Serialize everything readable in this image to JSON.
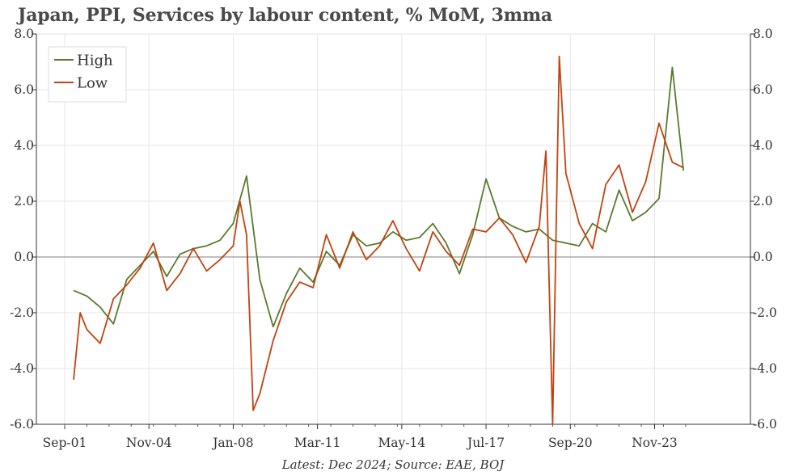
{
  "title": "Japan, PPI, Services by labour content, % MoM, 3mma",
  "footnote": "Latest: Dec 2024; Source: EAE, BOJ",
  "chart_data": {
    "type": "line",
    "x_label": "",
    "y_label": "",
    "ylim": [
      -6.0,
      8.0
    ],
    "y_ticks": [
      "8.0",
      "6.0",
      "4.0",
      "2.0",
      "0.0",
      "-2.0",
      "-4.0",
      "-6.0"
    ],
    "x_ticks": [
      "Sep-01",
      "Nov-04",
      "Jan-08",
      "Mar-11",
      "May-14",
      "Jul-17",
      "Sep-20",
      "Nov-23"
    ],
    "grid": true,
    "legend": "top-left",
    "dual_y_axis_mirrored": true,
    "zero_line": true,
    "series": [
      {
        "name": "High",
        "color": "#5a7a2e",
        "x": [
          "2002-01",
          "2002-07",
          "2003-01",
          "2003-07",
          "2004-01",
          "2004-07",
          "2005-01",
          "2005-07",
          "2006-01",
          "2006-07",
          "2007-01",
          "2007-07",
          "2008-01",
          "2008-07",
          "2009-01",
          "2009-07",
          "2010-01",
          "2010-07",
          "2011-01",
          "2011-07",
          "2012-01",
          "2012-07",
          "2013-01",
          "2013-07",
          "2014-01",
          "2014-07",
          "2015-01",
          "2015-07",
          "2016-01",
          "2016-07",
          "2017-01",
          "2017-07",
          "2018-01",
          "2018-07",
          "2019-01",
          "2019-07",
          "2020-01",
          "2020-07",
          "2021-01",
          "2021-07",
          "2022-01",
          "2022-07",
          "2023-01",
          "2023-07",
          "2024-01",
          "2024-07",
          "2024-12"
        ],
        "values": [
          -1.2,
          -1.4,
          -1.8,
          -2.4,
          -0.8,
          -0.3,
          0.2,
          -0.7,
          0.1,
          0.3,
          0.4,
          0.6,
          1.2,
          2.9,
          -0.8,
          -2.5,
          -1.3,
          -0.4,
          -0.9,
          0.2,
          -0.3,
          0.8,
          0.4,
          0.5,
          0.9,
          0.6,
          0.7,
          1.2,
          0.5,
          -0.6,
          0.8,
          2.8,
          1.4,
          1.1,
          0.9,
          1.0,
          0.6,
          0.5,
          0.4,
          1.2,
          0.9,
          2.4,
          1.3,
          1.6,
          2.1,
          6.8,
          3.1
        ]
      },
      {
        "name": "Low",
        "color": "#c0440f",
        "x": [
          "2002-01",
          "2002-04",
          "2002-07",
          "2003-01",
          "2003-07",
          "2004-01",
          "2004-07",
          "2005-01",
          "2005-07",
          "2006-01",
          "2006-07",
          "2007-01",
          "2007-07",
          "2008-01",
          "2008-04",
          "2008-07",
          "2008-10",
          "2009-01",
          "2009-07",
          "2010-01",
          "2010-07",
          "2011-01",
          "2011-07",
          "2012-01",
          "2012-07",
          "2013-01",
          "2013-07",
          "2014-01",
          "2014-07",
          "2015-01",
          "2015-07",
          "2016-01",
          "2016-07",
          "2017-01",
          "2017-07",
          "2018-01",
          "2018-07",
          "2019-01",
          "2019-07",
          "2019-10",
          "2020-01",
          "2020-04",
          "2020-07",
          "2021-01",
          "2021-07",
          "2022-01",
          "2022-07",
          "2023-01",
          "2023-07",
          "2024-01",
          "2024-07",
          "2024-12"
        ],
        "values": [
          -4.4,
          -2.0,
          -2.6,
          -3.1,
          -1.5,
          -1.0,
          -0.4,
          0.5,
          -1.2,
          -0.6,
          0.3,
          -0.5,
          -0.1,
          0.4,
          2.0,
          0.8,
          -5.5,
          -4.9,
          -3.0,
          -1.6,
          -0.9,
          -1.1,
          0.8,
          -0.4,
          0.9,
          -0.1,
          0.4,
          1.3,
          0.3,
          -0.5,
          0.9,
          0.2,
          -0.3,
          1.0,
          0.9,
          1.4,
          0.8,
          -0.2,
          1.1,
          3.8,
          -6.0,
          7.2,
          3.0,
          1.2,
          0.3,
          2.6,
          3.3,
          1.6,
          2.7,
          4.8,
          3.4,
          3.2
        ]
      }
    ]
  }
}
